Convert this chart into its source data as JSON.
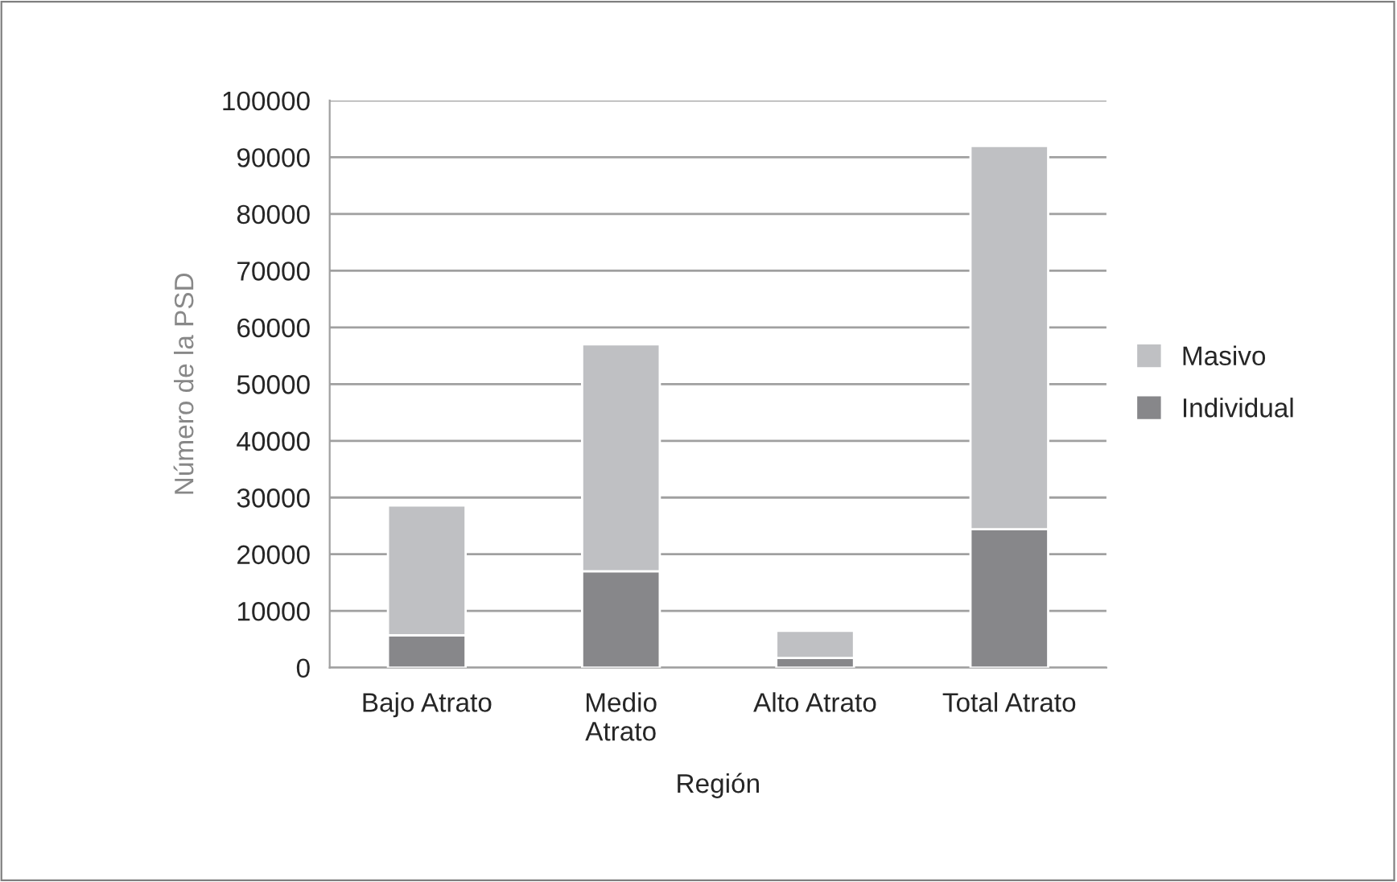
{
  "chart_data": {
    "type": "bar",
    "stacked": true,
    "xlabel": "Región",
    "ylabel": "Número de la PSD",
    "categories": [
      "Bajo Atrato",
      "Medio\nAtrato",
      "Alto Atrato",
      "Total Atrato"
    ],
    "series": [
      {
        "name": "Individual",
        "color": "#87878a",
        "values": [
          5700,
          17000,
          1700,
          24400
        ]
      },
      {
        "name": "Masivo",
        "color": "#bfc0c3",
        "values": [
          22900,
          40000,
          4800,
          67600
        ]
      }
    ],
    "ylim": [
      0,
      100000
    ],
    "yticks": [
      0,
      10000,
      20000,
      30000,
      40000,
      50000,
      60000,
      70000,
      80000,
      90000,
      100000
    ],
    "grid": "y",
    "legend": "right"
  }
}
